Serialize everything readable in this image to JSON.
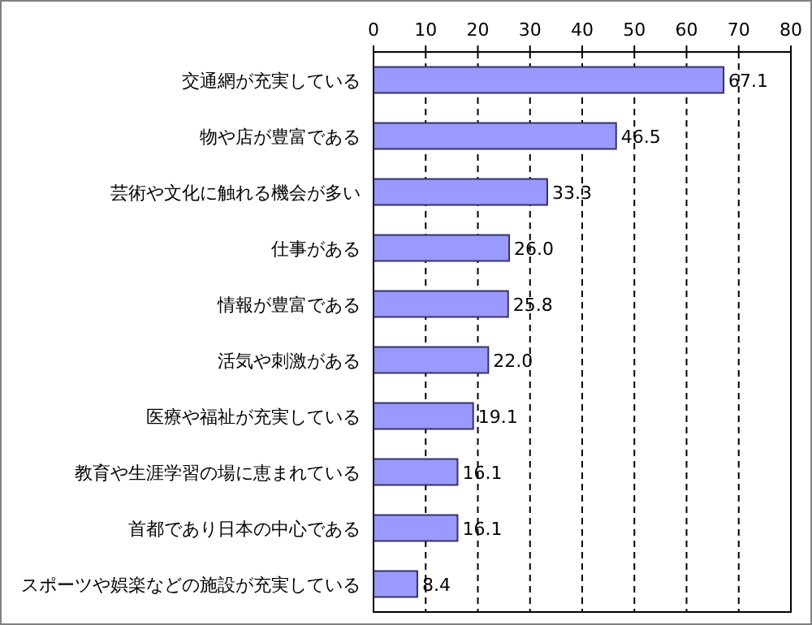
{
  "chart_data": {
    "type": "bar",
    "orientation": "horizontal",
    "categories": [
      "交通網が充実している",
      "物や店が豊富である",
      "芸術や文化に触れる機会が多い",
      "仕事がある",
      "情報が豊富である",
      "活気や刺激がある",
      "医療や福祉が充実している",
      "教育や生涯学習の場に恵まれている",
      "首都であり日本の中心である",
      "スポーツや娯楽などの施設が充実している"
    ],
    "values": [
      67.1,
      46.5,
      33.3,
      26.0,
      25.8,
      22.0,
      19.1,
      16.1,
      16.1,
      8.4
    ],
    "value_labels": [
      "67.1",
      "46.5",
      "33.3",
      "26.0",
      "25.8",
      "22.0",
      "19.1",
      "16.1",
      "16.1",
      "8.4"
    ],
    "color": "#9999ff",
    "xlim": [
      0,
      80
    ],
    "xticks": [
      0,
      10,
      20,
      30,
      40,
      50,
      60,
      70,
      80
    ],
    "grid": "x"
  }
}
